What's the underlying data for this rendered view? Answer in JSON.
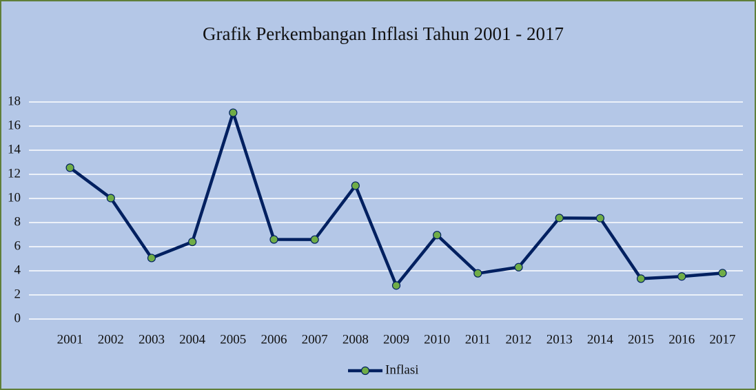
{
  "chart_data": {
    "type": "line",
    "title": "Grafik Perkembangan Inflasi Tahun 2001 - 2017",
    "categories": [
      "2001",
      "2002",
      "2003",
      "2004",
      "2005",
      "2006",
      "2007",
      "2008",
      "2009",
      "2010",
      "2011",
      "2012",
      "2013",
      "2014",
      "2015",
      "2016",
      "2017"
    ],
    "series": [
      {
        "name": "Inflasi",
        "color": "#002060",
        "marker_color": "#70ad47",
        "values": [
          12.55,
          10.03,
          5.06,
          6.4,
          17.11,
          6.6,
          6.59,
          11.06,
          2.78,
          6.96,
          3.79,
          4.3,
          8.38,
          8.36,
          3.35,
          3.53,
          3.81
        ]
      }
    ],
    "ylim": [
      0,
      18
    ],
    "yticks": [
      0,
      2,
      4,
      6,
      8,
      10,
      12,
      14,
      16,
      18
    ],
    "grid": true,
    "legend": "bottom"
  }
}
